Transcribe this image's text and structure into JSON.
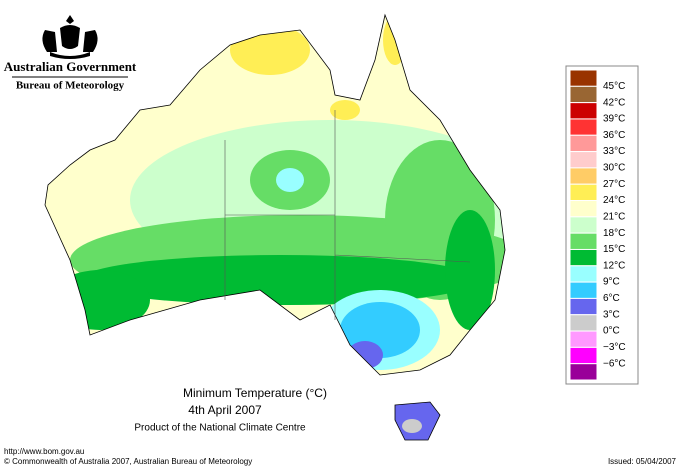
{
  "header": {
    "title": "Australian Government",
    "subtitle": "Bureau of Meteorology"
  },
  "map": {
    "title": "Minimum Temperature (°C)",
    "date": "4th April 2007",
    "credit": "Product of the National Climate Centre"
  },
  "legend": {
    "labels": [
      "45°C",
      "42°C",
      "39°C",
      "36°C",
      "33°C",
      "30°C",
      "27°C",
      "24°C",
      "21°C",
      "18°C",
      "15°C",
      "12°C",
      "9°C",
      "6°C",
      "3°C",
      "0°C",
      "−3°C",
      "−6°C"
    ],
    "colors": [
      "#993300",
      "#996633",
      "#cc0000",
      "#ff3333",
      "#ff9999",
      "#ffcccc",
      "#ffcc66",
      "#ffee55",
      "#ffffcc",
      "#ccffcc",
      "#66dd66",
      "#00bb33",
      "#99ffff",
      "#33ccff",
      "#6666ee",
      "#cccccc",
      "#ff99ff",
      "#ff00ff",
      "#990099"
    ]
  },
  "footer": {
    "url": "http://www.bom.gov.au",
    "copyright": "© Commonwealth of Australia 2007, Australian Bureau of Meteorology",
    "issued": "Issued: 05/04/2007"
  }
}
